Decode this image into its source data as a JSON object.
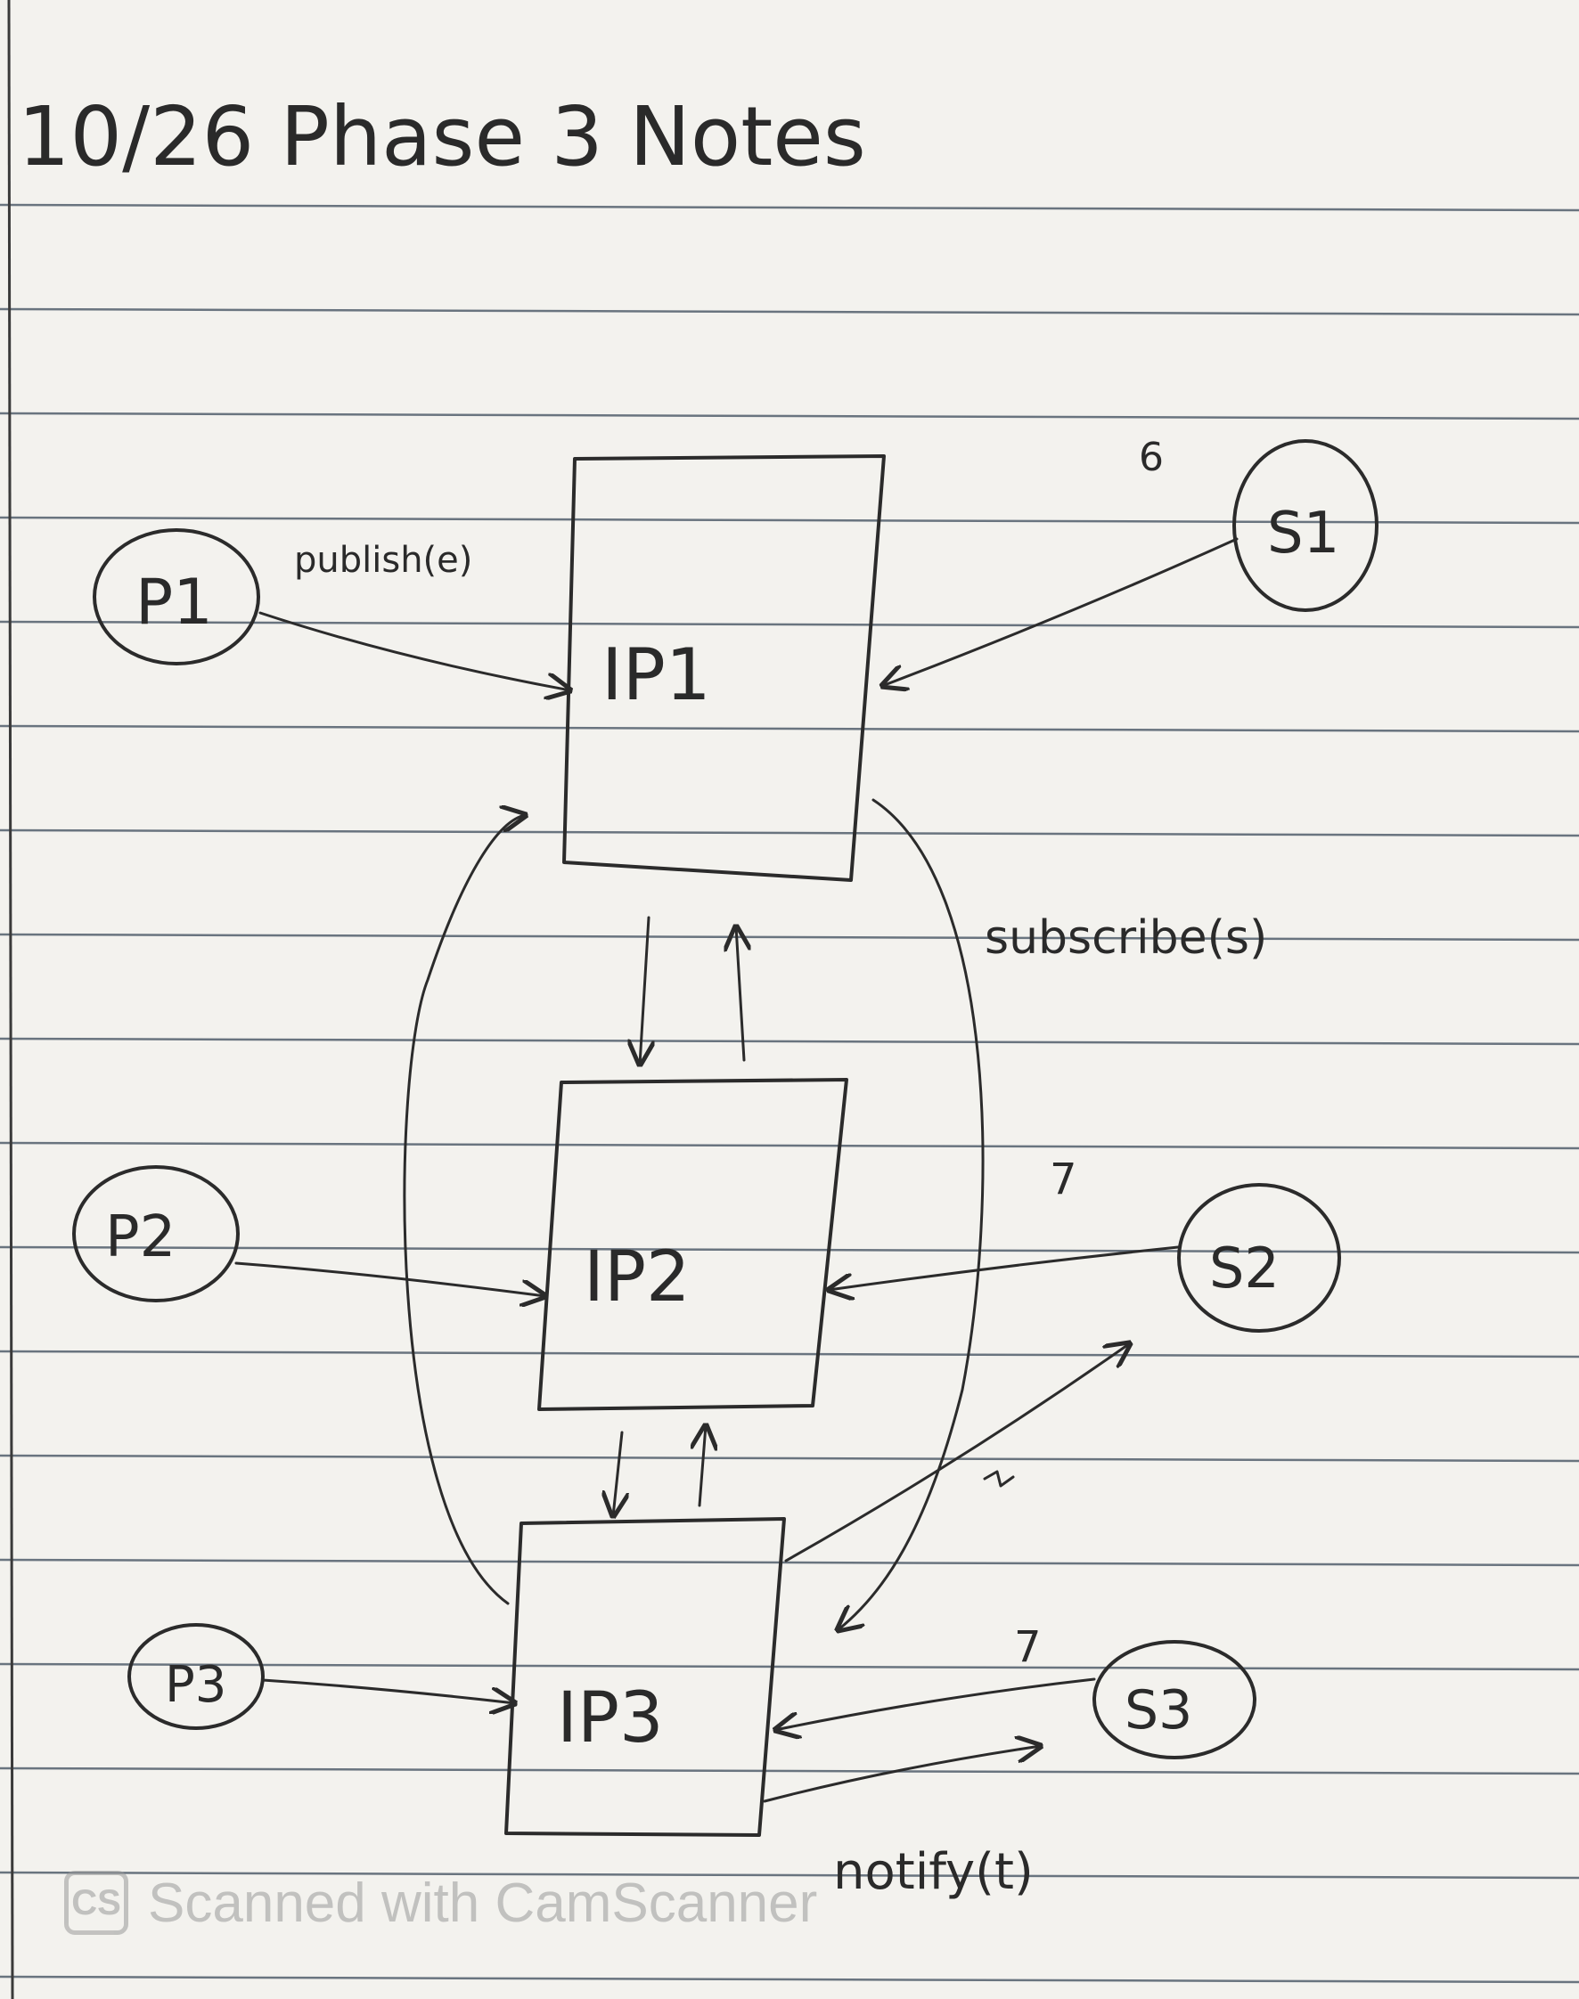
{
  "title": "10/26 Phase 3 Notes",
  "nodes": {
    "ip1": "IP1",
    "ip2": "IP2",
    "ip3": "IP3",
    "p1": "P1",
    "p2": "P2",
    "p3": "P3",
    "s1": "S1",
    "s2": "S2",
    "s3": "S3"
  },
  "edge_labels": {
    "publish": "publish(e)",
    "subscribe": "subscribe(s)",
    "notify": "notify(t)"
  },
  "marks": {
    "six": "6",
    "seven_s2": "7",
    "seven_s3": "7"
  },
  "watermark": {
    "logo": "CS",
    "text": "Scanned with CamScanner"
  }
}
